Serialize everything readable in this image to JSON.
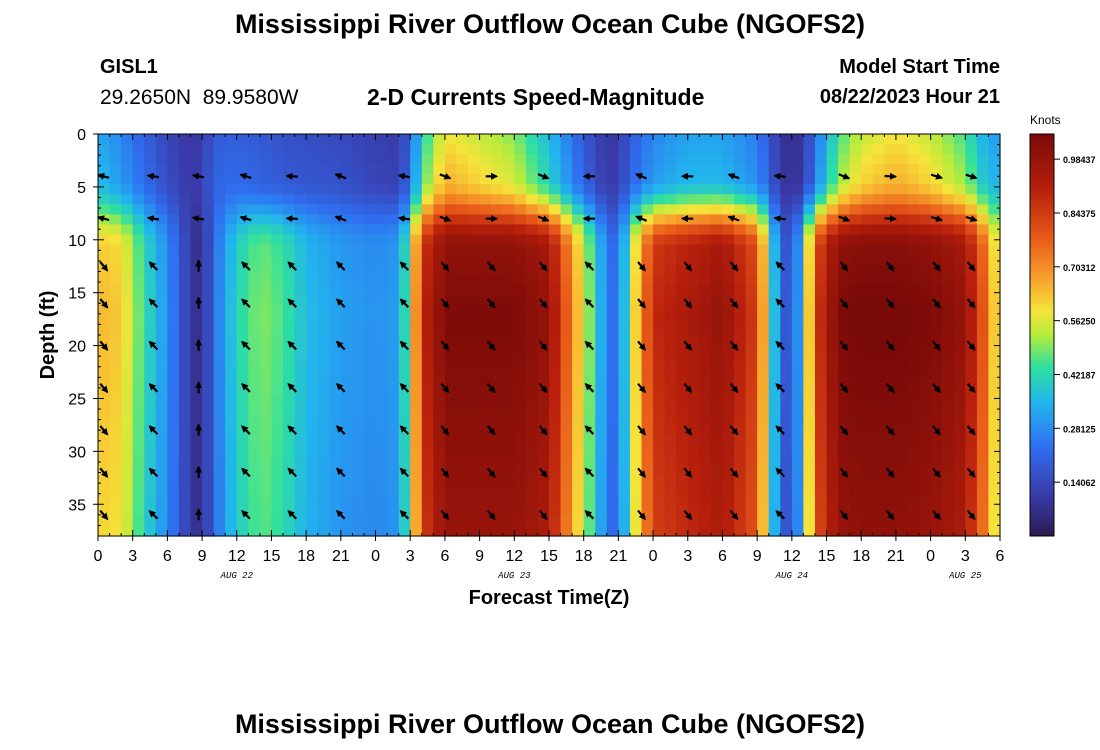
{
  "page": {
    "title": "Mississippi River Outflow Ocean Cube (NGOFS2)",
    "title_repeat": "Mississippi River Outflow Ocean Cube (NGOFS2)",
    "station_id": "GISL1",
    "station_coords": "29.2650N  89.9580W",
    "subtitle": "2-D Currents Speed-Magnitude",
    "model_start_label": "Model Start Time",
    "model_start_value": "08/22/2023 Hour 21"
  },
  "chart_data": {
    "type": "heatmap",
    "title": "2-D Currents Speed-Magnitude",
    "xlabel": "Forecast Time(Z)",
    "ylabel": "Depth (ft)",
    "units_label": "Knots",
    "x_hours_range": [
      0,
      78
    ],
    "x_tick_labels": [
      "0",
      "3",
      "6",
      "9",
      "12",
      "15",
      "18",
      "21",
      "0",
      "3",
      "6",
      "9",
      "12",
      "15",
      "18",
      "21",
      "0",
      "3",
      "6",
      "9",
      "12",
      "15",
      "18",
      "21",
      "0",
      "3",
      "6"
    ],
    "date_labels": [
      {
        "text": "AUG 22",
        "hour": 12
      },
      {
        "text": "AUG 23",
        "hour": 36
      },
      {
        "text": "AUG 24",
        "hour": 60
      },
      {
        "text": "AUG 25",
        "hour": 75
      }
    ],
    "y_range": [
      0,
      38
    ],
    "y_ticks": [
      0,
      5,
      10,
      15,
      20,
      25,
      30,
      35
    ],
    "colorbar": {
      "min": 0.0,
      "max": 1.05,
      "ticks": [
        0.984375,
        0.84375,
        0.703125,
        0.5625,
        0.421875,
        0.28125,
        0.140625
      ],
      "tick_labels": [
        "0.98437",
        "0.84375",
        "0.70312",
        "0.56250",
        "0.42187",
        "0.28125",
        "0.14062"
      ]
    },
    "speed_profile": {
      "hours": [
        0,
        2,
        4,
        6,
        8,
        9,
        10,
        12,
        14,
        16,
        18,
        21,
        24,
        26,
        27,
        28,
        30,
        33,
        36,
        39,
        42,
        44,
        45,
        46,
        48,
        51,
        54,
        57,
        58,
        59,
        60,
        61,
        62,
        64,
        66,
        69,
        72,
        75,
        77,
        78
      ],
      "surface": [
        0.36,
        0.3,
        0.22,
        0.15,
        0.1,
        0.12,
        0.2,
        0.22,
        0.2,
        0.18,
        0.17,
        0.16,
        0.13,
        0.12,
        0.22,
        0.45,
        0.65,
        0.6,
        0.55,
        0.4,
        0.2,
        0.1,
        0.12,
        0.2,
        0.3,
        0.35,
        0.35,
        0.28,
        0.2,
        0.1,
        0.08,
        0.1,
        0.25,
        0.5,
        0.6,
        0.65,
        0.6,
        0.5,
        0.35,
        0.35
      ],
      "deep": [
        0.62,
        0.6,
        0.42,
        0.28,
        0.1,
        0.06,
        0.22,
        0.4,
        0.48,
        0.44,
        0.35,
        0.3,
        0.28,
        0.3,
        0.5,
        0.85,
        1.0,
        1.0,
        1.0,
        0.95,
        0.55,
        0.25,
        0.2,
        0.5,
        0.85,
        0.9,
        0.95,
        0.8,
        0.5,
        0.2,
        0.15,
        0.4,
        0.8,
        1.0,
        1.02,
        1.02,
        1.0,
        0.95,
        0.7,
        0.5
      ]
    },
    "vector_rows_depth": [
      4,
      8,
      12.5,
      16,
      20,
      24,
      28,
      32,
      36
    ],
    "vector_cols_hour": [
      0.5,
      4.8,
      8.7,
      12.8,
      16.8,
      21,
      26.5,
      30,
      34,
      38.5,
      42.5,
      47,
      51,
      55,
      59,
      64.5,
      68.5,
      72.5,
      75.5
    ]
  }
}
